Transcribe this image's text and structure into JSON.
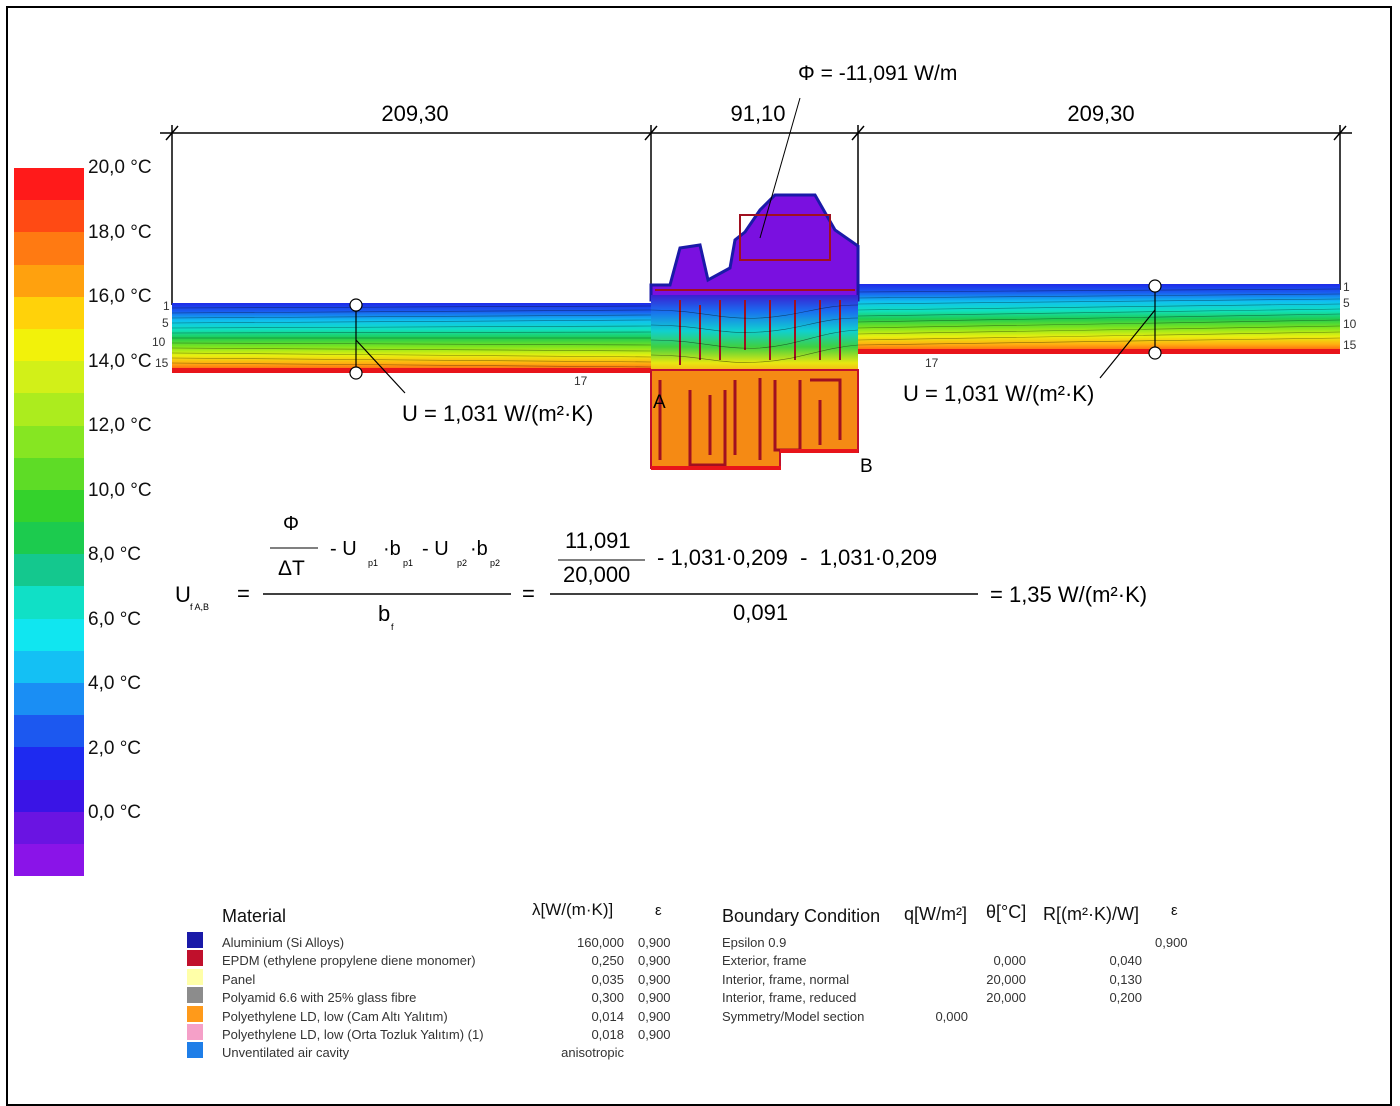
{
  "scale": {
    "colors": [
      "#ff1a1a",
      "#ff4a14",
      "#ff7a12",
      "#ffa10e",
      "#ffd20a",
      "#f2f20a",
      "#d2f018",
      "#acec1e",
      "#86e622",
      "#5edc26",
      "#34d22c",
      "#1ccb4e",
      "#14c88e",
      "#10e0c6",
      "#10e6f0",
      "#14c0f4",
      "#1a8ef4",
      "#1c58f0",
      "#1e2af0",
      "#3a14e6",
      "#6a14e2",
      "#8a14e8"
    ],
    "labels": [
      "20,0 °C",
      "18,0 °C",
      "16,0 °C",
      "14,0 °C",
      "12,0 °C",
      "10,0 °C",
      "8,0 °C",
      "6,0 °C",
      "4,0 °C",
      "2,0 °C",
      "0,0 °C"
    ]
  },
  "dimensions": {
    "left": "209,30",
    "middle": "91,10",
    "right": "209,30"
  },
  "phi": "Φ = -11,091 W/m",
  "u_left": "U = 1,031 W/(m²·K)",
  "u_right": "U = 1,031 W/(m²·K)",
  "points": {
    "a": "A",
    "b": "B"
  },
  "isotherms": {
    "l1": "1",
    "l5": "5",
    "l10": "10",
    "l15": "15",
    "l17": "17",
    "r1": "1",
    "r5": "5",
    "r10": "10",
    "r15": "15",
    "r17": "17"
  },
  "formula": {
    "u_sym": "U",
    "u_sub": "f A,B",
    "eq": "=",
    "phi": "Φ",
    "dt": "ΔT",
    "terms": "- U",
    "p1": "p1",
    "b": "·b",
    "bp1": "p1",
    "minus": "- U",
    "p2": "p2",
    "b2": "·b",
    "bp2": "p2",
    "bf": "b",
    "bf_sub": "f",
    "num": "11,091",
    "den": "20,000",
    "rest": "- 1,031·0,209  -  1,031·0,209",
    "denom": "0,091",
    "result": "= 1,35 W/(m²·K)"
  },
  "materials": {
    "title": "Material",
    "lambda_hdr": "λ[W/(m·K)]",
    "eps_hdr": "ε",
    "rows": [
      {
        "name": "Aluminium (Si Alloys)",
        "lambda": "160,000",
        "eps": "0,900",
        "color": "#1a1aa8"
      },
      {
        "name": "EPDM (ethylene propylene diene monomer)",
        "lambda": "0,250",
        "eps": "0,900",
        "color": "#c0102c"
      },
      {
        "name": "Panel",
        "lambda": "0,035",
        "eps": "0,900",
        "color": "#ffffa8"
      },
      {
        "name": "Polyamid 6.6 with 25% glass fibre",
        "lambda": "0,300",
        "eps": "0,900",
        "color": "#8c8c8c"
      },
      {
        "name": "Polyethylene LD, low (Cam Altı Yalıtım)",
        "lambda": "0,014",
        "eps": "0,900",
        "color": "#ff9a1a"
      },
      {
        "name": "Polyethylene LD, low (Orta Tozluk Yalıtım) (1)",
        "lambda": "0,018",
        "eps": "0,900",
        "color": "#f5a0c8"
      },
      {
        "name": "Unventilated air cavity",
        "lambda": "anisotropic",
        "eps": "",
        "color": "#1e7ee8"
      }
    ]
  },
  "boundary": {
    "title": "Boundary Condition",
    "q_hdr": "q[W/m²]",
    "theta_hdr": "θ[°C]",
    "r_hdr": "R[(m²·K)/W]",
    "eps_hdr": "ε",
    "rows": [
      {
        "name": "Epsilon 0.9",
        "q": "",
        "theta": "",
        "r": "",
        "eps": "0,900"
      },
      {
        "name": "Exterior, frame",
        "q": "",
        "theta": "0,000",
        "r": "0,040",
        "eps": ""
      },
      {
        "name": "Interior, frame, normal",
        "q": "",
        "theta": "20,000",
        "r": "0,130",
        "eps": ""
      },
      {
        "name": "Interior, frame, reduced",
        "q": "",
        "theta": "20,000",
        "r": "0,200",
        "eps": ""
      },
      {
        "name": "Symmetry/Model section",
        "q": "0,000",
        "theta": "",
        "r": "",
        "eps": ""
      }
    ]
  }
}
